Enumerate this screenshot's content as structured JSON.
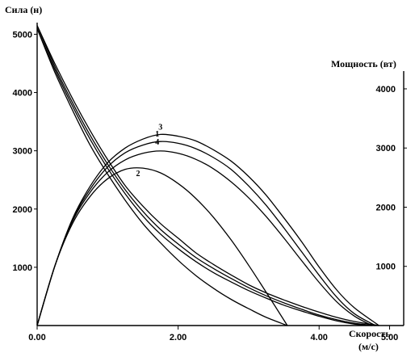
{
  "chart_data": {
    "type": "line",
    "title": "",
    "left_axis": {
      "label": "Сила (н)",
      "ticks": [
        "1000",
        "2000",
        "3000",
        "4000",
        "5000"
      ],
      "ylim": [
        0,
        5200
      ]
    },
    "right_axis": {
      "label": "Мощность (вт)",
      "ticks": [
        "1000",
        "2000",
        "3000",
        "4000"
      ],
      "ylim": [
        0,
        4300
      ]
    },
    "x_axis": {
      "label_line1": "Скорость",
      "label_line2": "(м/с)",
      "ticks": [
        "0.00",
        "2.00",
        "4.00",
        "5.00"
      ],
      "xlim": [
        0,
        5.2
      ]
    },
    "curve_labels": [
      "3",
      "1",
      "4",
      "2"
    ],
    "force_series": [
      {
        "x": [
          0,
          0.25,
          0.5,
          0.75,
          1.0,
          1.25,
          1.5,
          1.75,
          2.0,
          2.25,
          2.5,
          2.75,
          3.0,
          3.25,
          3.5,
          3.75,
          4.0,
          4.25,
          4.5,
          4.85
        ],
        "y": [
          5150,
          4500,
          3900,
          3350,
          2850,
          2400,
          2050,
          1750,
          1500,
          1250,
          1050,
          870,
          700,
          560,
          440,
          330,
          230,
          140,
          70,
          0
        ]
      },
      {
        "x": [
          0,
          0.25,
          0.5,
          0.75,
          1.0,
          1.25,
          1.5,
          1.75,
          2.0,
          2.25,
          2.5,
          2.75,
          3.0,
          3.25,
          3.5,
          3.75,
          4.0,
          4.25,
          4.5,
          4.8
        ],
        "y": [
          5150,
          4450,
          3830,
          3270,
          2770,
          2330,
          1960,
          1650,
          1400,
          1170,
          980,
          810,
          650,
          510,
          390,
          280,
          180,
          100,
          40,
          0
        ]
      },
      {
        "x": [
          0,
          0.25,
          0.5,
          0.75,
          1.0,
          1.25,
          1.5,
          1.75,
          2.0,
          2.25,
          2.5,
          2.75,
          3.0,
          3.25,
          3.5,
          3.75,
          4.0,
          4.25,
          4.5,
          4.75
        ],
        "y": [
          5100,
          4400,
          3770,
          3200,
          2700,
          2260,
          1880,
          1570,
          1320,
          1100,
          910,
          750,
          600,
          470,
          350,
          250,
          160,
          80,
          25,
          0
        ]
      },
      {
        "x": [
          0,
          0.25,
          0.5,
          0.75,
          1.0,
          1.25,
          1.5,
          1.75,
          2.0,
          2.25,
          2.5,
          2.75,
          3.0,
          3.25,
          3.55
        ],
        "y": [
          5100,
          4350,
          3700,
          3100,
          2600,
          2150,
          1750,
          1420,
          1120,
          860,
          640,
          450,
          290,
          140,
          0
        ]
      }
    ],
    "power_series": [
      {
        "name": "3",
        "x": [
          0,
          0.25,
          0.5,
          0.75,
          1.0,
          1.25,
          1.5,
          1.75,
          2.0,
          2.25,
          2.5,
          2.75,
          3.0,
          3.25,
          3.5,
          3.75,
          4.0,
          4.25,
          4.5,
          4.85
        ],
        "y": [
          0,
          1000,
          1800,
          2350,
          2750,
          3000,
          3150,
          3230,
          3200,
          3120,
          2970,
          2780,
          2520,
          2200,
          1820,
          1420,
          990,
          600,
          300,
          0
        ]
      },
      {
        "name": "1",
        "x": [
          0,
          0.25,
          0.5,
          0.75,
          1.0,
          1.25,
          1.5,
          1.75,
          2.0,
          2.25,
          2.5,
          2.75,
          3.0,
          3.25,
          3.5,
          3.75,
          4.0,
          4.25,
          4.5,
          4.8
        ],
        "y": [
          0,
          1000,
          1780,
          2300,
          2680,
          2920,
          3050,
          3110,
          3080,
          2990,
          2840,
          2640,
          2360,
          2030,
          1650,
          1250,
          850,
          480,
          200,
          0
        ]
      },
      {
        "name": "4",
        "x": [
          0,
          0.25,
          0.5,
          0.75,
          1.0,
          1.25,
          1.5,
          1.75,
          2.0,
          2.25,
          2.5,
          2.75,
          3.0,
          3.25,
          3.5,
          3.75,
          4.0,
          4.25,
          4.5,
          4.75
        ],
        "y": [
          0,
          1000,
          1760,
          2250,
          2590,
          2800,
          2910,
          2950,
          2910,
          2810,
          2650,
          2430,
          2160,
          1840,
          1480,
          1100,
          730,
          400,
          160,
          0
        ]
      },
      {
        "name": "2",
        "x": [
          0,
          0.25,
          0.5,
          0.75,
          1.0,
          1.25,
          1.5,
          1.75,
          2.0,
          2.25,
          2.5,
          2.75,
          3.0,
          3.25,
          3.55
        ],
        "y": [
          0,
          1000,
          1720,
          2180,
          2480,
          2640,
          2660,
          2580,
          2400,
          2150,
          1830,
          1450,
          1020,
          560,
          0
        ]
      }
    ]
  }
}
